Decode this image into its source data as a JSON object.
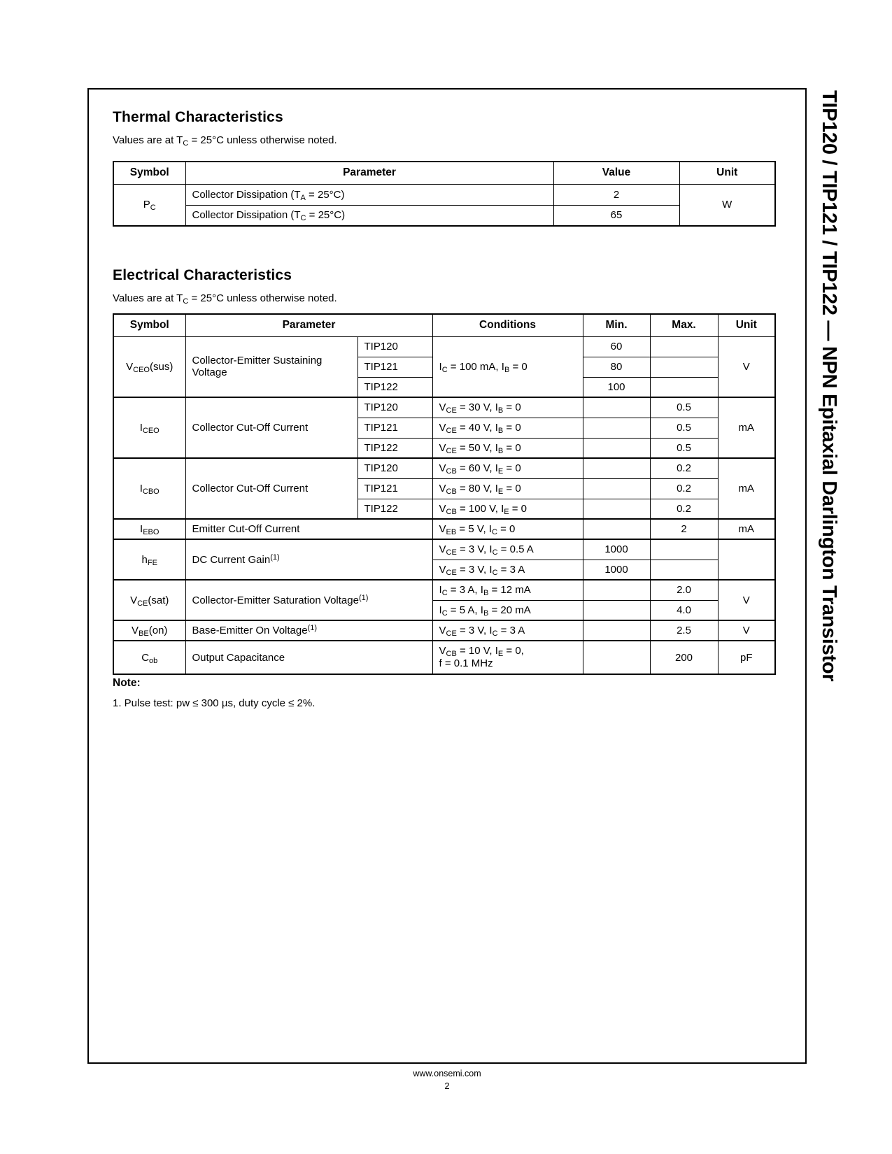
{
  "page": {
    "side_tab": "TIP120 / TIP121 / TIP122 — NPN Epitaxial Darlington Transistor",
    "footer": {
      "url": "www.onsemi.com",
      "page_number": "2"
    }
  },
  "thermal": {
    "title": "Thermal Characteristics",
    "subtitle": "Values are at T<sub>C</sub> = 25°C unless otherwise noted.",
    "headers": [
      "Symbol",
      "Parameter",
      "Value",
      "Unit"
    ],
    "symbol": "P<sub>C</sub>",
    "unit": "W",
    "rows": [
      {
        "parameter": "Collector Dissipation (T<sub>A</sub> = 25°C)",
        "value": "2"
      },
      {
        "parameter": "Collector Dissipation (T<sub>C</sub> = 25°C)",
        "value": "65"
      }
    ]
  },
  "electrical": {
    "title": "Electrical Characteristics",
    "subtitle": "Values are at T<sub>C</sub> = 25°C unless otherwise noted.",
    "headers": [
      "Symbol",
      "Parameter",
      "Conditions",
      "Min.",
      "Max.",
      "Unit"
    ],
    "vceo": {
      "symbol": "V<sub>CEO</sub>(sus)",
      "parameter": "Collector-Emitter Sustaining Voltage",
      "condition": "I<sub>C</sub> = 100 mA, I<sub>B</sub> = 0",
      "unit": "V",
      "rows": [
        {
          "device": "TIP120",
          "min": "60",
          "max": ""
        },
        {
          "device": "TIP121",
          "min": "80",
          "max": ""
        },
        {
          "device": "TIP122",
          "min": "100",
          "max": ""
        }
      ]
    },
    "iceo": {
      "symbol": "I<sub>CEO</sub>",
      "parameter": "Collector Cut-Off Current",
      "unit": "mA",
      "rows": [
        {
          "device": "TIP120",
          "condition": "V<sub>CE</sub> = 30 V, I<sub>B</sub> = 0",
          "min": "",
          "max": "0.5"
        },
        {
          "device": "TIP121",
          "condition": "V<sub>CE</sub> = 40 V, I<sub>B</sub> = 0",
          "min": "",
          "max": "0.5"
        },
        {
          "device": "TIP122",
          "condition": "V<sub>CE</sub> = 50 V, I<sub>B</sub> = 0",
          "min": "",
          "max": "0.5"
        }
      ]
    },
    "icbo": {
      "symbol": "I<sub>CBO</sub>",
      "parameter": "Collector Cut-Off Current",
      "unit": "mA",
      "rows": [
        {
          "device": "TIP120",
          "condition": "V<sub>CB</sub> = 60 V, I<sub>E</sub> = 0",
          "min": "",
          "max": "0.2"
        },
        {
          "device": "TIP121",
          "condition": "V<sub>CB</sub> = 80 V, I<sub>E</sub> = 0",
          "min": "",
          "max": "0.2"
        },
        {
          "device": "TIP122",
          "condition": "V<sub>CB</sub> = 100 V, I<sub>E</sub> = 0",
          "min": "",
          "max": "0.2"
        }
      ]
    },
    "iebo": {
      "symbol": "I<sub>EBO</sub>",
      "parameter": "Emitter Cut-Off Current",
      "condition": "V<sub>EB</sub> = 5 V, I<sub>C</sub> = 0",
      "min": "",
      "max": "2",
      "unit": "mA"
    },
    "hfe": {
      "symbol": "h<sub>FE</sub>",
      "parameter": "DC Current Gain<sup>(1)</sup>",
      "unit": "",
      "rows": [
        {
          "condition": "V<sub>CE</sub> = 3 V, I<sub>C</sub> = 0.5 A",
          "min": "1000",
          "max": ""
        },
        {
          "condition": "V<sub>CE</sub> = 3 V, I<sub>C</sub> = 3 A",
          "min": "1000",
          "max": ""
        }
      ]
    },
    "vcesat": {
      "symbol": "V<sub>CE</sub>(sat)",
      "parameter": "Collector-Emitter Saturation Voltage<sup>(1)</sup>",
      "unit": "V",
      "rows": [
        {
          "condition": "I<sub>C</sub> = 3 A, I<sub>B</sub> = 12 mA",
          "min": "",
          "max": "2.0"
        },
        {
          "condition": "I<sub>C</sub> = 5 A, I<sub>B</sub> = 20 mA",
          "min": "",
          "max": "4.0"
        }
      ]
    },
    "vbeon": {
      "symbol": "V<sub>BE</sub>(on)",
      "parameter": "Base-Emitter On Voltage<sup>(1)</sup>",
      "condition": "V<sub>CE</sub> = 3 V, I<sub>C</sub> = 3 A",
      "min": "",
      "max": "2.5",
      "unit": "V"
    },
    "cob": {
      "symbol": "C<sub>ob</sub>",
      "parameter": "Output Capacitance",
      "condition": "V<sub>CB</sub> = 10 V, I<sub>E</sub> = 0,<br>f = 0.1 MHz",
      "min": "",
      "max": "200",
      "unit": "pF"
    }
  },
  "note": {
    "label": "Note:",
    "item": "1. Pulse test: pw ≤ 300 µs, duty cycle ≤ 2%."
  }
}
